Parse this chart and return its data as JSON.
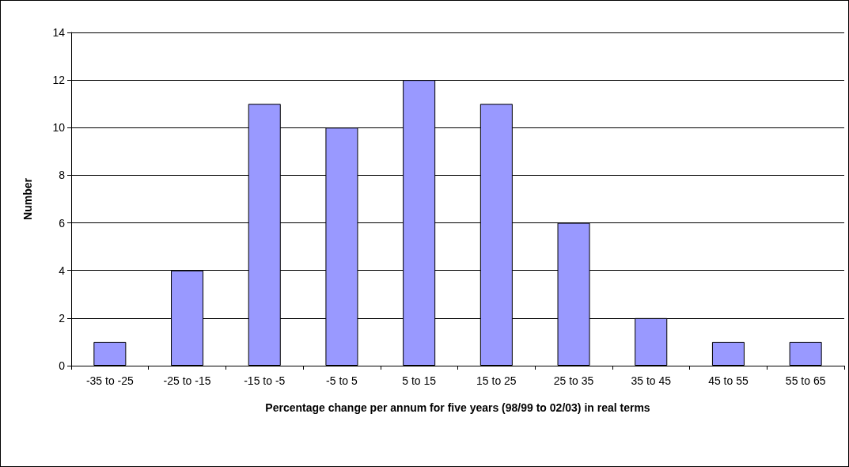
{
  "chart_data": {
    "type": "bar",
    "xlabel": "Percentage change per annum for five years (98/99 to 02/03) in real terms",
    "ylabel": "Number",
    "categories": [
      "-35 to -25",
      "-25 to -15",
      "-15 to -5",
      "-5 to 5",
      "5 to 15",
      "15 to 25",
      "25 to 35",
      "35 to 45",
      "45 to 55",
      "55 to 65"
    ],
    "values": [
      1,
      4,
      11,
      10,
      12,
      11,
      6,
      2,
      1,
      1
    ],
    "color": "#9999ff",
    "ylim": [
      0,
      14
    ],
    "yticks": [
      0,
      2,
      4,
      6,
      8,
      10,
      12,
      14
    ],
    "grid": "y"
  }
}
